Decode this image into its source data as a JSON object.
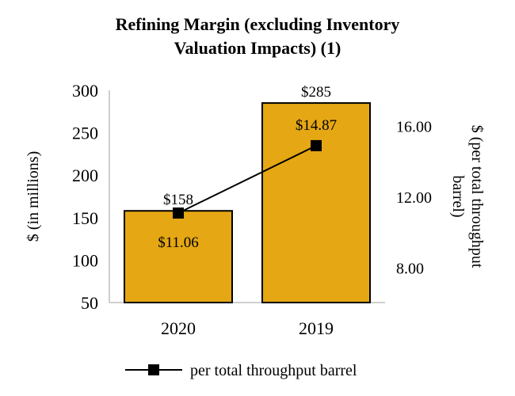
{
  "chart_data": {
    "type": "bar",
    "title_lines": [
      "Refining Margin (excluding Inventory",
      "Valuation Impacts) (1)"
    ],
    "categories": [
      "2020",
      "2019"
    ],
    "bar_values": [
      158,
      285
    ],
    "bar_labels": [
      "$158",
      "$285"
    ],
    "line_values": [
      11.06,
      14.87
    ],
    "line_labels": [
      "$11.06",
      "$14.87"
    ],
    "y_left_label": "$ (in millions)",
    "y_left_ticks": [
      "50",
      "100",
      "150",
      "200",
      "250",
      "300"
    ],
    "y_left_range": [
      50,
      300
    ],
    "y_right_label_lines": [
      "$ (per total throughput",
      "barrel)"
    ],
    "y_right_ticks": [
      "8.00",
      "12.00",
      "16.00"
    ],
    "y_right_range": [
      6.0,
      18.0
    ],
    "series": [
      {
        "name": "",
        "kind": "bar",
        "values": [
          158,
          285
        ]
      },
      {
        "name": "per total throughput barrel",
        "kind": "line",
        "values": [
          11.06,
          14.87
        ]
      }
    ],
    "legend_text": "per total throughput barrel",
    "legend_position": "bottom",
    "grid": false,
    "colors": {
      "bar": "#E5A713",
      "bar_stroke": "#000000",
      "line": "#000000",
      "axis": "#BFBFBF"
    }
  }
}
